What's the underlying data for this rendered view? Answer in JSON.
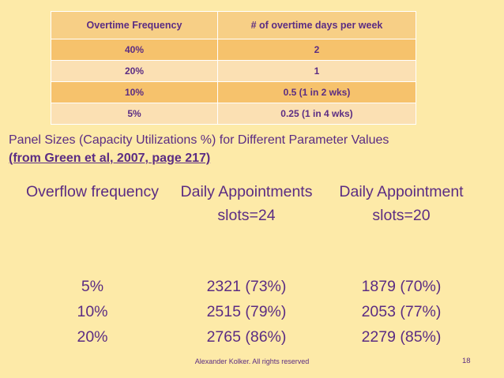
{
  "overtime_table": {
    "headers": [
      "Overtime Frequency",
      "# of overtime days per week"
    ],
    "rows": [
      [
        "40%",
        "2"
      ],
      [
        "20%",
        "1"
      ],
      [
        "10%",
        "0.5 (1 in 2 wks)"
      ],
      [
        "5%",
        "0.25 (1 in 4 wks)"
      ]
    ]
  },
  "panel": {
    "title": "Panel Sizes (Capacity Utilizations %) for Different Parameter Values",
    "reference": "(from Green et al, 2007, page 217)",
    "columns": [
      {
        "header": "Overflow frequency",
        "values": [
          "5%",
          "10%",
          "20%"
        ]
      },
      {
        "header": "Daily Appointments slots=24",
        "values": [
          "2321 (73%)",
          "2515 (79%)",
          "2765 (86%)"
        ]
      },
      {
        "header": "Daily Appointment slots=20",
        "values": [
          "1879 (70%)",
          "2053 (77%)",
          "2279 (85%)"
        ]
      }
    ]
  },
  "footer": {
    "copyright": "Alexander Kolker. All rights reserved",
    "page_number": "18"
  },
  "colors": {
    "background": "#fdeaa8",
    "text": "#5b2c83",
    "header_row": "#f7cf86",
    "row_dark": "#f6c26c",
    "row_light": "#fbe0b3"
  }
}
